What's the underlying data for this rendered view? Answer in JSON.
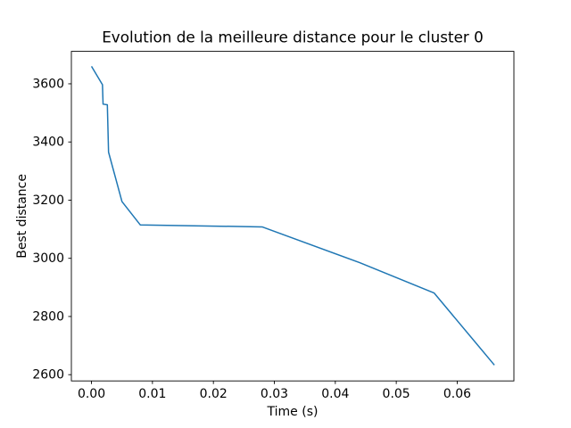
{
  "chart_data": {
    "type": "line",
    "title": "Evolution de la meilleure distance pour le cluster 0",
    "xlabel": "Time (s)",
    "ylabel": "Best distance",
    "xlim": [
      -0.0033,
      0.0693
    ],
    "ylim": [
      2578.5,
      3711.5
    ],
    "grid": false,
    "legend": "none",
    "xticks": {
      "values": [
        0.0,
        0.01,
        0.02,
        0.03,
        0.04,
        0.05,
        0.06
      ],
      "labels": [
        "0.00",
        "0.01",
        "0.02",
        "0.03",
        "0.04",
        "0.05",
        "0.06"
      ]
    },
    "yticks": {
      "values": [
        2600,
        2800,
        3000,
        3200,
        3400,
        3600
      ],
      "labels": [
        "2600",
        "2800",
        "3000",
        "3200",
        "3400",
        "3600"
      ]
    },
    "series": [
      {
        "name": "best-distance-curve",
        "color": "#1f77b4",
        "points": [
          [
            0.0,
            3660
          ],
          [
            0.0018,
            3597
          ],
          [
            0.0019,
            3530
          ],
          [
            0.0026,
            3528
          ],
          [
            0.0028,
            3365
          ],
          [
            0.005,
            3195
          ],
          [
            0.008,
            3115
          ],
          [
            0.028,
            3108
          ],
          [
            0.044,
            2985
          ],
          [
            0.0562,
            2881
          ],
          [
            0.0661,
            2633
          ]
        ]
      }
    ],
    "colors": {
      "background": "#ffffff",
      "spine": "#000000",
      "line": "#1f77b4"
    }
  }
}
